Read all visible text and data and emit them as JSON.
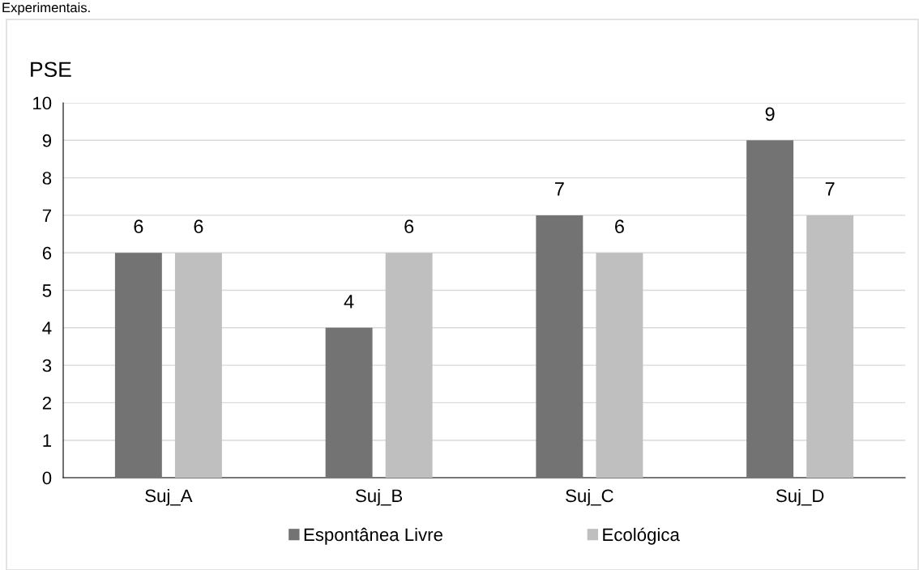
{
  "chart_data": {
    "type": "bar",
    "ylabel": "PSE",
    "annotations": [
      "Experimentais."
    ],
    "categories": [
      "Suj_A",
      "Suj_B",
      "Suj_C",
      "Suj_D"
    ],
    "series": [
      {
        "name": "Espontânea Livre",
        "color": "#737373",
        "values": [
          6,
          4,
          7,
          9
        ]
      },
      {
        "name": "Ecológica",
        "color": "#bfbfbf",
        "values": [
          6,
          6,
          6,
          7
        ]
      }
    ],
    "ylim": [
      0,
      10
    ],
    "yticks": [
      0,
      1,
      2,
      3,
      4,
      5,
      6,
      7,
      8,
      9,
      10
    ],
    "grid": "y",
    "legend": "bottom",
    "data_labels": true
  }
}
